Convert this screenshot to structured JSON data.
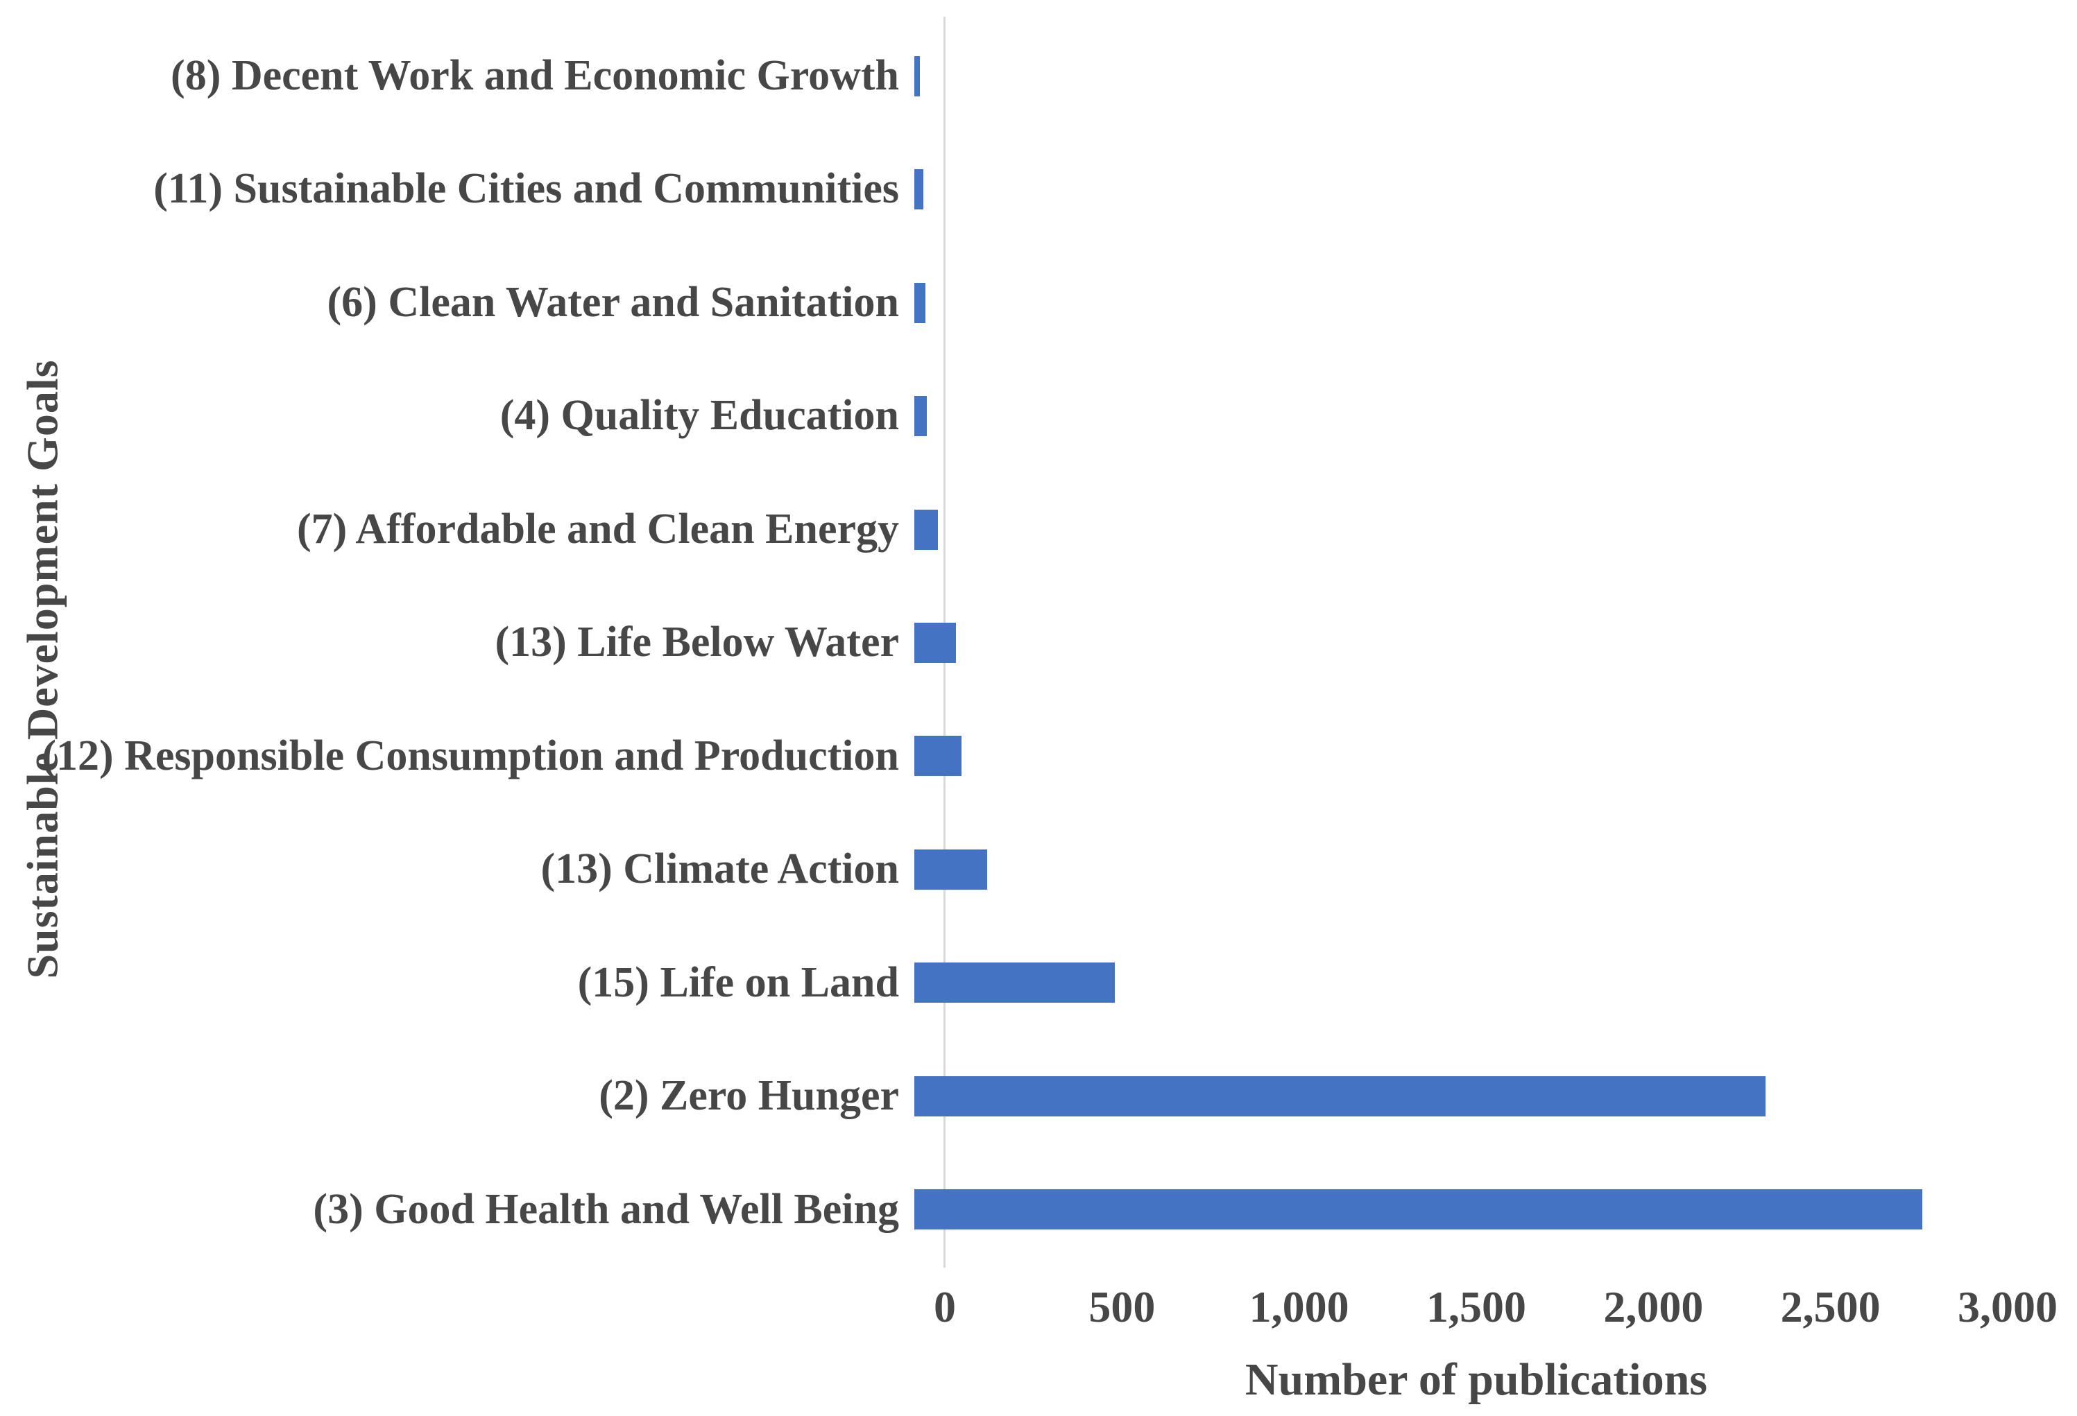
{
  "figure": {
    "background_color": "#FFFFFF"
  },
  "chart_data": {
    "type": "bar",
    "orientation": "horizontal",
    "title": "",
    "xlabel": "Number of publications",
    "ylabel": "Sustainable Development Goals",
    "categories": [
      "(8) Decent Work and Economic Growth",
      "(11) Sustainable Cities and Communities",
      "(6) Clean Water and Sanitation",
      "(4) Quality Education",
      "(7) Affordable and Clean Energy",
      "(13) Life Below Water",
      "(12) Responsible Consumption and Production",
      "(13) Climate Action",
      "(15) Life on Land",
      "(2) Zero Hunger",
      "(3) Good Health and Well Being"
    ],
    "values": [
      15,
      25,
      30,
      35,
      65,
      115,
      130,
      200,
      550,
      2335,
      2765
    ],
    "xlim": [
      0,
      3000
    ],
    "xticks": [
      0,
      500,
      1000,
      1500,
      2000,
      2500,
      3000
    ],
    "xtick_labels": [
      "0",
      "500",
      "1,000",
      "1,500",
      "2,000",
      "2,500",
      "3,000"
    ],
    "grid": false,
    "legend": false,
    "bar_color": "#4573C4",
    "axis_line_color": "#D9D9D9",
    "text_color": "#474747"
  }
}
